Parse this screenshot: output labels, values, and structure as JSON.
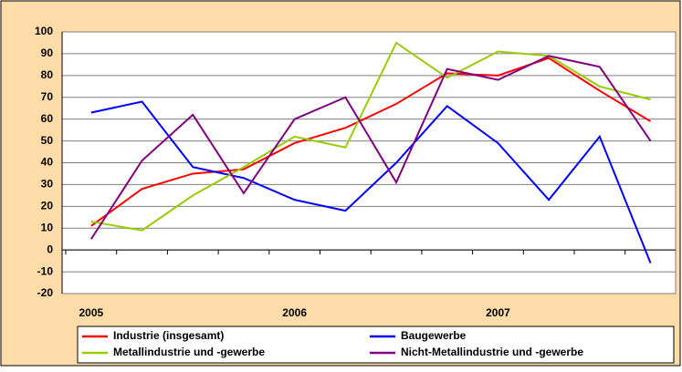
{
  "chart_data": {
    "type": "line",
    "categories": [
      "2005",
      null,
      null,
      null,
      "2006",
      null,
      null,
      null,
      "2007",
      null,
      null,
      null
    ],
    "series": [
      {
        "name": "Industrie (insgesamt)",
        "color": "#ff0000",
        "values": [
          11,
          28,
          35,
          37,
          49,
          56,
          67,
          81,
          80,
          88,
          73,
          59
        ]
      },
      {
        "name": "Baugewerbe",
        "color": "#0000ff",
        "values": [
          63,
          68,
          38,
          33,
          23,
          18,
          40,
          66,
          49,
          23,
          52,
          -6
        ]
      },
      {
        "name": "Metallindustrie und -gewerbe",
        "color": "#99cc00",
        "values": [
          13,
          9,
          25,
          38,
          52,
          47,
          95,
          79,
          91,
          89,
          75,
          69
        ]
      },
      {
        "name": "Nicht-Metallindustrie und -gewerbe",
        "color": "#800080",
        "values": [
          5,
          41,
          62,
          26,
          60,
          70,
          31,
          83,
          78,
          89,
          84,
          50
        ]
      }
    ],
    "ylim": [
      -20,
      100
    ],
    "yticks": [
      -20,
      -10,
      0,
      10,
      20,
      30,
      40,
      50,
      60,
      70,
      80,
      90,
      100
    ],
    "grid": true
  }
}
